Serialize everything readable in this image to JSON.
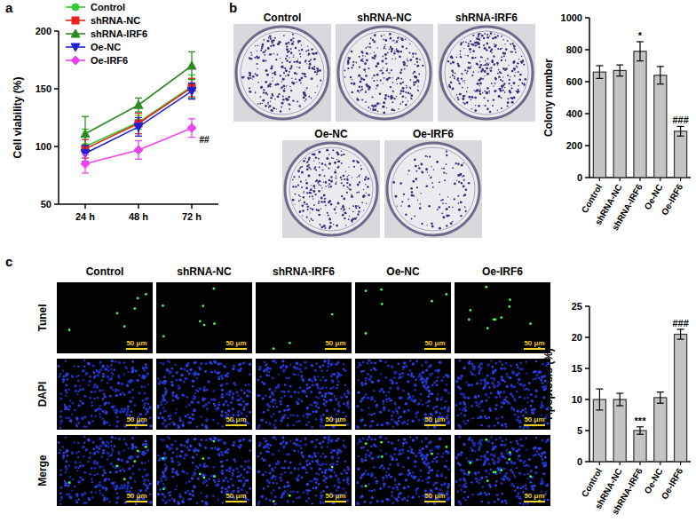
{
  "panel_labels": [
    "a",
    "b",
    "c"
  ],
  "chart_data": [
    {
      "type": "line",
      "y_label": "Cell viability (%)",
      "categories": [
        "24 h",
        "48 h",
        "72 h"
      ],
      "ylim": [
        50,
        200
      ],
      "yticks": [
        50,
        100,
        150,
        200
      ],
      "legend": "top-left",
      "series": [
        {
          "name": "Control",
          "color": "#33cc33",
          "marker": "circle",
          "values": [
            100,
            121,
            152
          ],
          "errors": [
            15,
            6,
            10
          ],
          "significance": [
            null,
            null,
            null
          ]
        },
        {
          "name": "shRNA-NC",
          "color": "#e8231d",
          "marker": "square",
          "values": [
            98,
            120,
            151
          ],
          "errors": [
            8,
            9,
            8
          ],
          "significance": [
            null,
            null,
            null
          ]
        },
        {
          "name": "shRNA-IRF6",
          "color": "#2e8b22",
          "marker": "triangle",
          "values": [
            111,
            136,
            170
          ],
          "errors": [
            15,
            6,
            12
          ],
          "significance": [
            null,
            null,
            null
          ]
        },
        {
          "name": "Oe-NC",
          "color": "#1f1fd6",
          "marker": "triangle-down",
          "values": [
            94,
            117,
            148
          ],
          "errors": [
            7,
            8,
            7
          ],
          "significance": [
            null,
            null,
            null
          ]
        },
        {
          "name": "Oe-IRF6",
          "color": "#ee44ee",
          "marker": "diamond",
          "values": [
            85,
            97,
            116
          ],
          "errors": [
            8,
            8,
            8
          ],
          "significance": [
            null,
            null,
            "##"
          ]
        }
      ]
    },
    {
      "type": "bar",
      "y_label": "Colony number",
      "categories": [
        "Control",
        "shRNA-NC",
        "shRNA-IRF6",
        "Oe-NC",
        "Oe-IRF6"
      ],
      "values": [
        660,
        670,
        790,
        640,
        290
      ],
      "errors": [
        40,
        35,
        60,
        55,
        30
      ],
      "significance": [
        null,
        null,
        "*",
        null,
        "###"
      ],
      "color": "#c4c4c4",
      "ylim": [
        0,
        1000
      ],
      "yticks": [
        0,
        200,
        400,
        600,
        800,
        1000
      ]
    },
    {
      "type": "bar",
      "y_label": "Apoptosis (%)",
      "categories": [
        "Control",
        "shRNA-NC",
        "shRNA-IRF6",
        "Oe-NC",
        "Oe-IRF6"
      ],
      "values": [
        10,
        10,
        5,
        10.3,
        20.5
      ],
      "errors": [
        1.7,
        1.0,
        0.6,
        0.9,
        0.8
      ],
      "significance": [
        null,
        null,
        "***",
        null,
        "###"
      ],
      "color": "#c4c4c4",
      "ylim": [
        0,
        25
      ],
      "yticks": [
        0,
        5,
        10,
        15,
        20,
        25
      ]
    }
  ],
  "colony_images": {
    "labels": [
      "Control",
      "shRNA-NC",
      "shRNA-IRF6",
      "Oe-NC",
      "Oe-IRF6"
    ]
  },
  "tunel_images": {
    "columns": [
      "Control",
      "shRNA-NC",
      "shRNA-IRF6",
      "Oe-NC",
      "Oe-IRF6"
    ],
    "rows": [
      "Tunel",
      "DAPI",
      "Merge"
    ],
    "scale_bar": "50 μm"
  }
}
